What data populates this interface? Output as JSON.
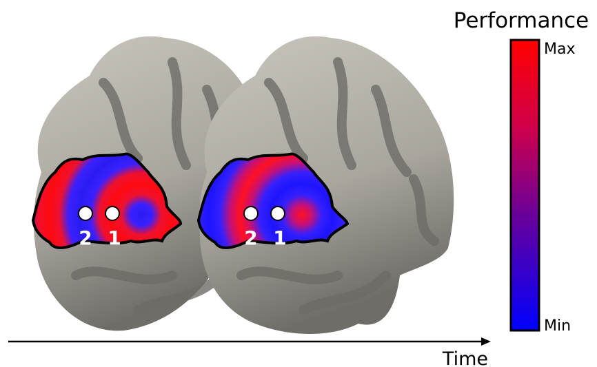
{
  "colorbar": {
    "title": "Performance",
    "max_label": "Max",
    "min_label": "Min"
  },
  "brains": [
    {
      "markers": [
        {
          "label": "2"
        },
        {
          "label": "1"
        }
      ]
    },
    {
      "markers": [
        {
          "label": "2"
        },
        {
          "label": "1"
        }
      ]
    }
  ],
  "axis": {
    "label": "Time"
  }
}
